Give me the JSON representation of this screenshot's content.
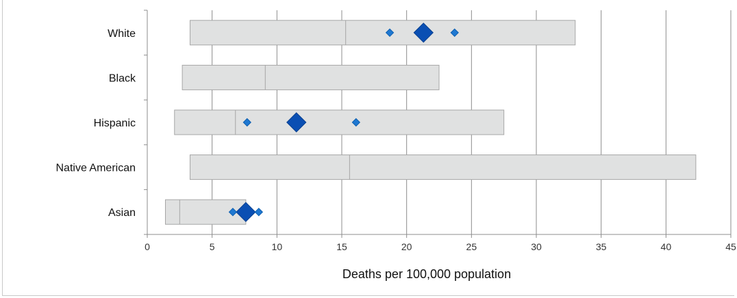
{
  "chart_data": {
    "type": "box",
    "orientation": "horizontal",
    "xlabel": "Deaths per 100,000 population",
    "xlim": [
      0,
      45
    ],
    "xticks": [
      0,
      5,
      10,
      15,
      20,
      25,
      30,
      35,
      40,
      45
    ],
    "grid": "vertical",
    "categories": [
      "White",
      "Black",
      "Hispanic",
      "Native American",
      "Asian"
    ],
    "boxes": [
      {
        "category": "White",
        "low": 3.3,
        "mid": 15.3,
        "high": 33.0
      },
      {
        "category": "Black",
        "low": 2.7,
        "mid": 9.1,
        "high": 22.5
      },
      {
        "category": "Hispanic",
        "low": 2.1,
        "mid": 6.8,
        "high": 27.5
      },
      {
        "category": "Native American",
        "low": 3.3,
        "mid": 15.6,
        "high": 42.3
      },
      {
        "category": "Asian",
        "low": 1.4,
        "mid": 2.5,
        "high": 7.6
      }
    ],
    "markers": [
      {
        "category": "White",
        "value": 21.3,
        "size": "large"
      },
      {
        "category": "White",
        "value": 18.7,
        "size": "small"
      },
      {
        "category": "White",
        "value": 23.7,
        "size": "small"
      },
      {
        "category": "Hispanic",
        "value": 11.5,
        "size": "large"
      },
      {
        "category": "Hispanic",
        "value": 7.7,
        "size": "small"
      },
      {
        "category": "Hispanic",
        "value": 16.1,
        "size": "small"
      },
      {
        "category": "Asian",
        "value": 7.6,
        "size": "large"
      },
      {
        "category": "Asian",
        "value": 6.6,
        "size": "small"
      },
      {
        "category": "Asian",
        "value": 8.6,
        "size": "small"
      }
    ],
    "colors": {
      "box_fill": "#e0e1e1",
      "box_stroke": "#a6a6a6",
      "grid": "#8c8c8c",
      "marker_large": "#0a4fb3",
      "marker_small": "#1f78d1"
    }
  }
}
